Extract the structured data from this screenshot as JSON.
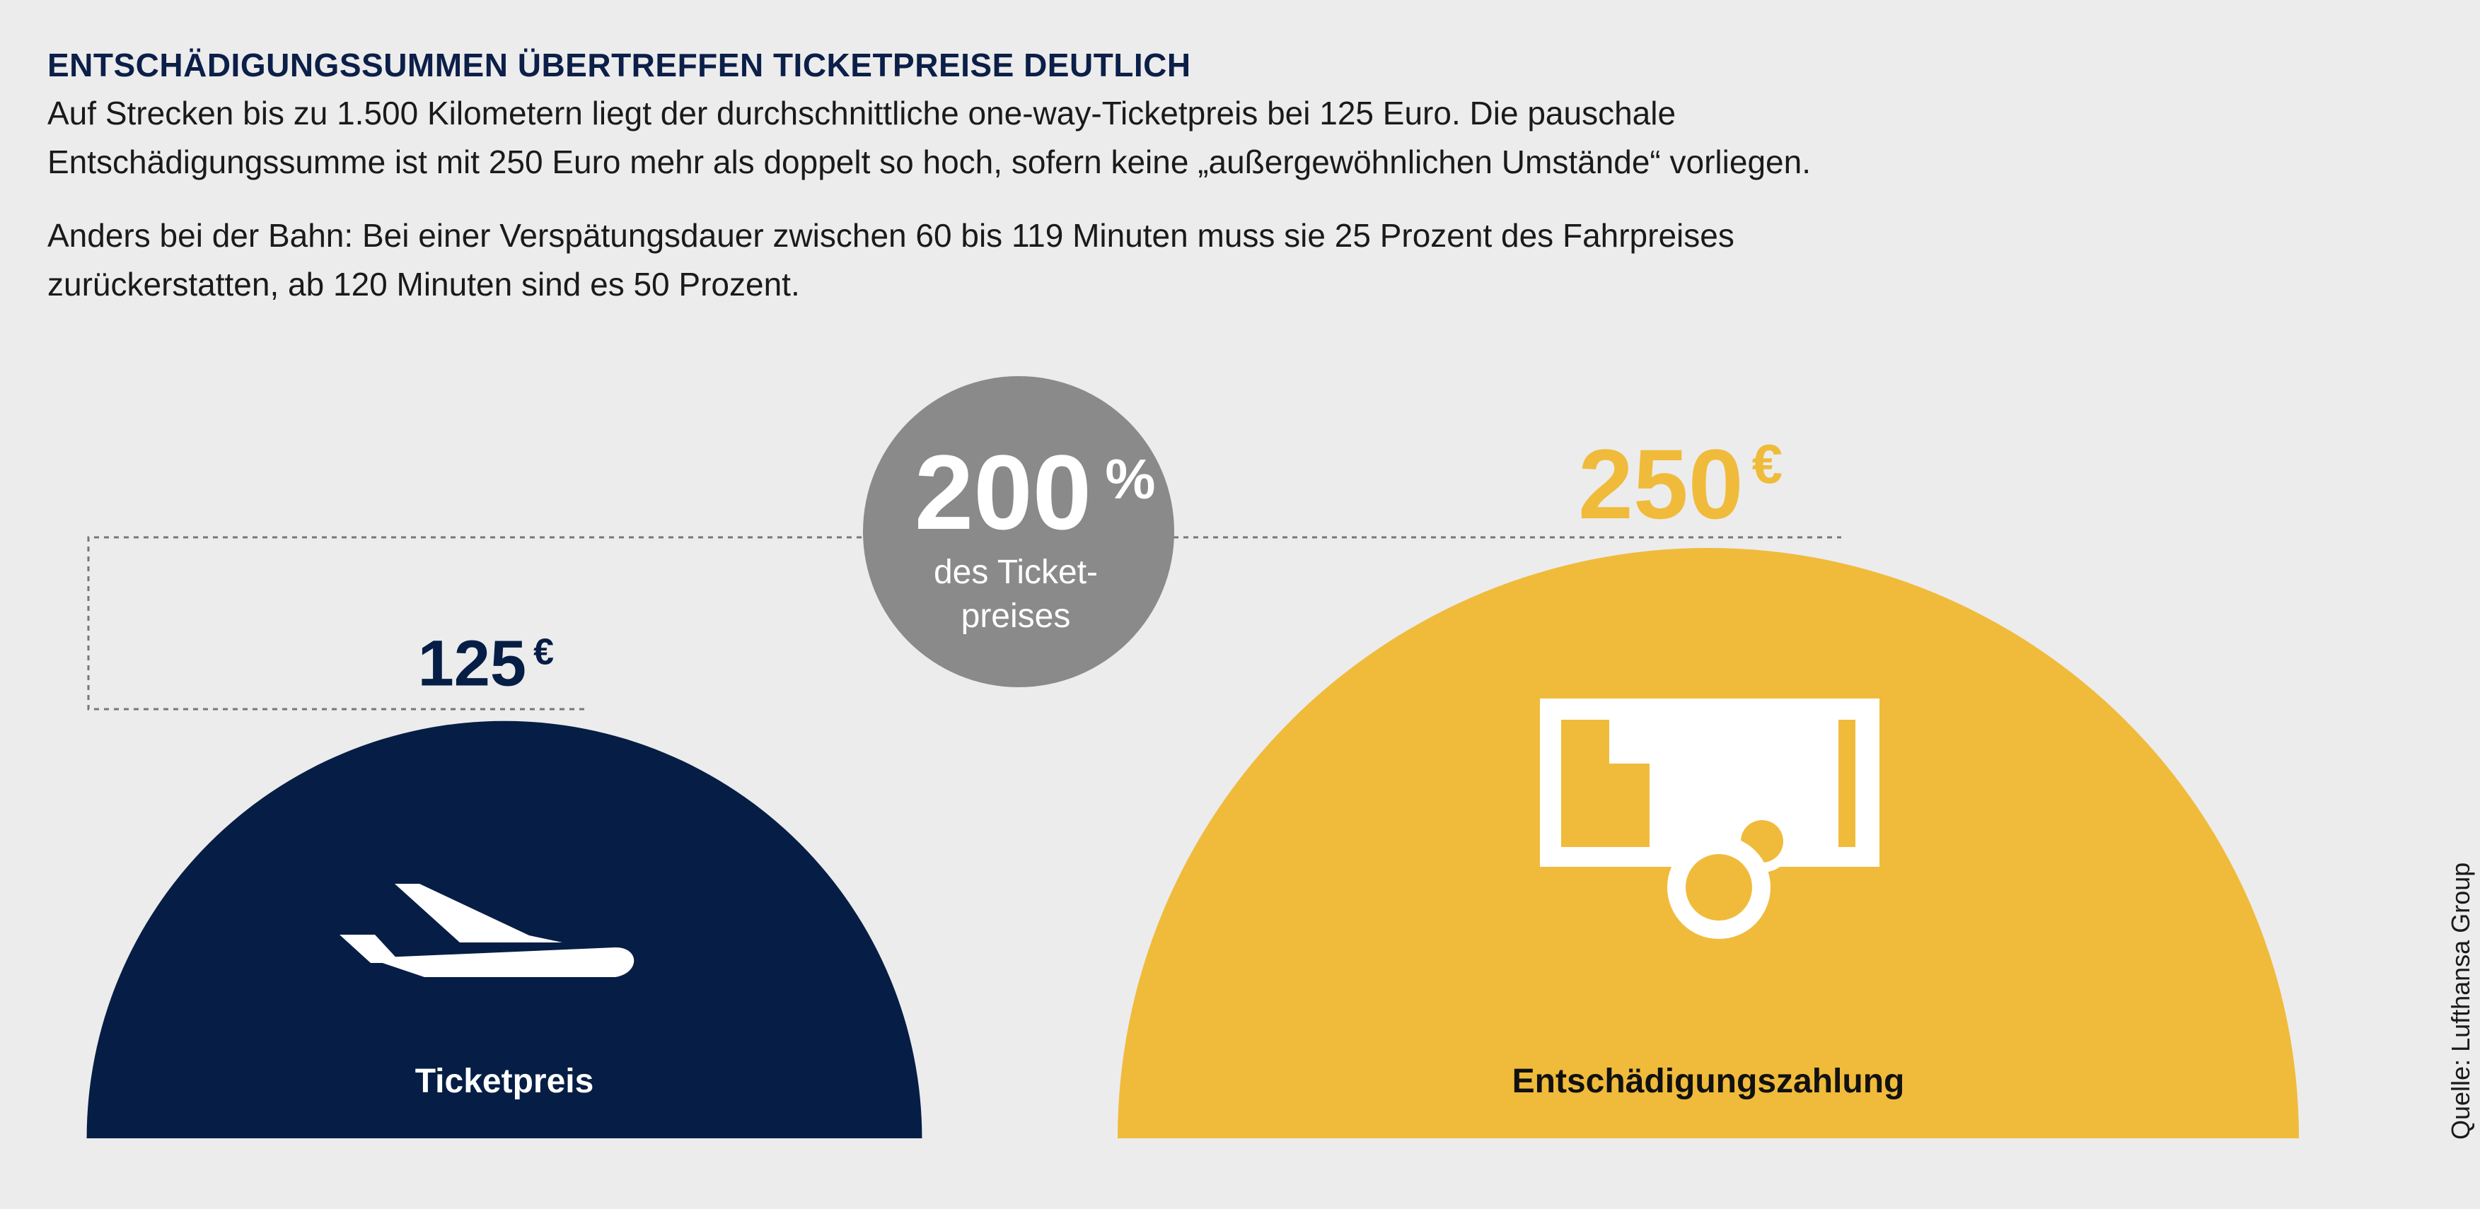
{
  "header": {
    "title": "ENTSCHÄDIGUNGSSUMMEN ÜBERTREFFEN TICKETPREISE DEUTLICH",
    "paragraph1_line1": "Auf Strecken bis zu 1.500 Kilometern liegt der durchschnittliche one-way-Ticketpreis bei 125 Euro. Die pauschale",
    "paragraph1_line2": "Entschädigungssumme ist mit 250 Euro mehr als doppelt so hoch, sofern keine „außergewöhnlichen Umstände“ vorliegen.",
    "paragraph2_line1": "Anders bei der Bahn: Bei einer Verspätungsdauer zwischen 60 bis 119 Minuten muss sie 25 Prozent des Fahrpreises",
    "paragraph2_line2": "zurückerstatten, ab 120 Minuten sind es 50 Prozent."
  },
  "chart_data": {
    "type": "bar",
    "categories": [
      "Ticketpreis",
      "Entschädigungszahlung"
    ],
    "values": [
      125,
      250
    ],
    "value_labels": [
      "125",
      "250"
    ],
    "unit": "€",
    "colors": [
      "#061e45",
      "#f0bb3b"
    ],
    "icons": [
      "airplane-icon",
      "ticket-coin-icon"
    ],
    "comparison": {
      "value": "200",
      "unit": "%",
      "label_line1": "des Ticket-",
      "label_line2": "preises",
      "color": "#8a8a8a"
    }
  },
  "source": "Quelle: Lufthansa Group"
}
